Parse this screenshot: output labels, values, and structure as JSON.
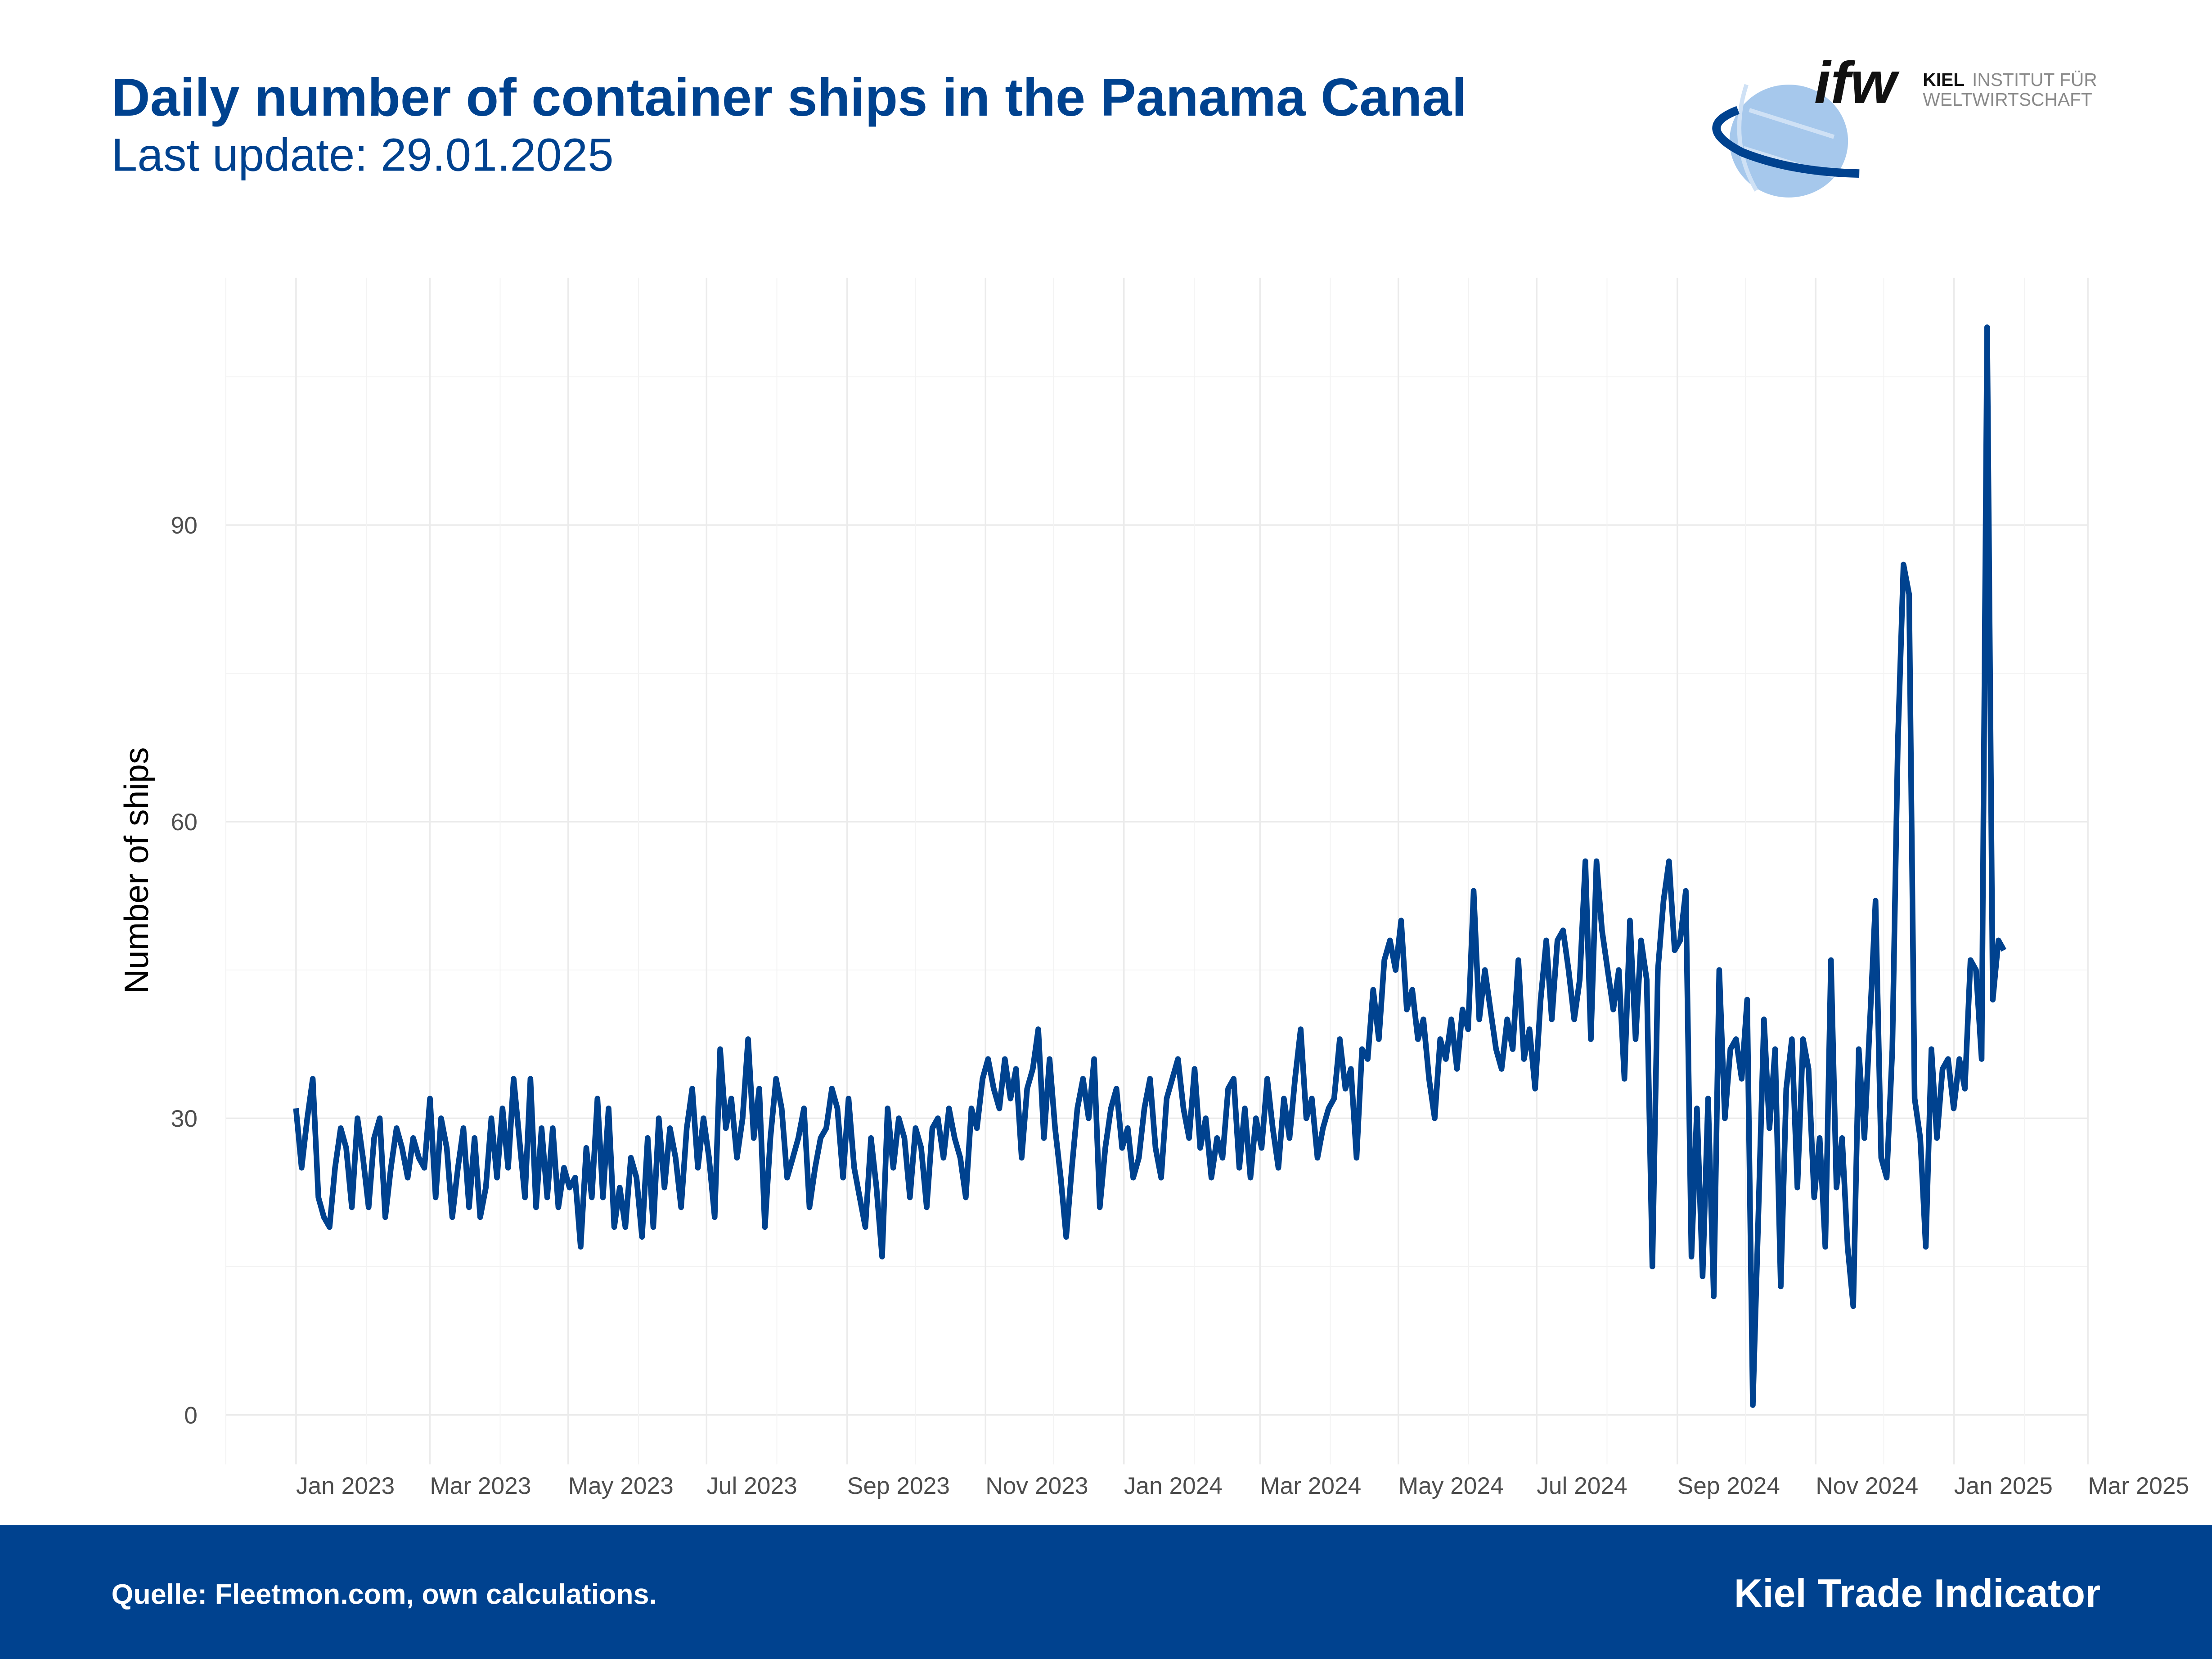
{
  "header": {
    "title": "Daily number of container ships in the Panama Canal",
    "subtitle": "Last update: 29.01.2025"
  },
  "logo": {
    "mark": "ifw",
    "line1_bold": "KIEL",
    "line1_rest": "INSTITUT FÜR",
    "line2": "WELTWIRTSCHAFT"
  },
  "footer": {
    "source": "Quelle: Fleetmon.com, own calculations.",
    "brand": "Kiel Trade Indicator",
    "background": "#00428f"
  },
  "chart_data": {
    "type": "line",
    "title": "Daily number of container ships in the Panama Canal",
    "xlabel": "",
    "ylabel": "Number of ships",
    "line_color": "#00428f",
    "grid": true,
    "legend": "none",
    "xlim": [
      "2022-12-01",
      "2025-03-01"
    ],
    "ylim": [
      -5,
      115
    ],
    "yticks": [
      0,
      30,
      60,
      90
    ],
    "ytick_labels": [
      "0",
      "30",
      "60",
      "90"
    ],
    "xticks": [
      "2023-01-01",
      "2023-03-01",
      "2023-05-01",
      "2023-07-01",
      "2023-09-01",
      "2023-11-01",
      "2024-01-01",
      "2024-03-01",
      "2024-05-01",
      "2024-07-01",
      "2024-09-01",
      "2024-11-01",
      "2025-01-01",
      "2025-03-01"
    ],
    "xtick_labels": [
      "Jan 2023",
      "Mar 2023",
      "May 2023",
      "Jul 2023",
      "Sep 2023",
      "Nov 2023",
      "Jan 2024",
      "Mar 2024",
      "May 2024",
      "Jul 2024",
      "Sep 2024",
      "Nov 2024",
      "Jan 2025",
      "Mar 2025"
    ],
    "series_date_range": [
      "2023-01-01",
      "2025-01-23"
    ],
    "values": [
      31,
      25,
      30,
      34,
      22,
      20,
      19,
      25,
      29,
      27,
      21,
      30,
      26,
      21,
      28,
      30,
      20,
      25,
      29,
      27,
      24,
      28,
      26,
      25,
      32,
      22,
      30,
      27,
      20,
      25,
      29,
      21,
      28,
      20,
      23,
      30,
      24,
      31,
      25,
      34,
      28,
      22,
      34,
      21,
      29,
      22,
      29,
      21,
      25,
      23,
      24,
      17,
      27,
      22,
      32,
      22,
      31,
      19,
      23,
      19,
      26,
      24,
      18,
      28,
      19,
      30,
      23,
      29,
      26,
      21,
      29,
      33,
      25,
      30,
      26,
      20,
      37,
      29,
      32,
      26,
      30,
      38,
      28,
      33,
      19,
      28,
      34,
      31,
      24,
      26,
      28,
      31,
      21,
      25,
      28,
      29,
      33,
      31,
      24,
      32,
      25,
      22,
      19,
      28,
      23,
      16,
      31,
      25,
      30,
      28,
      22,
      29,
      27,
      21,
      29,
      30,
      26,
      31,
      28,
      26,
      22,
      31,
      29,
      34,
      36,
      33,
      31,
      36,
      32,
      35,
      26,
      33,
      35,
      39,
      28,
      36,
      29,
      24,
      18,
      25,
      31,
      34,
      30,
      36,
      21,
      27,
      31,
      33,
      27,
      29,
      24,
      26,
      31,
      34,
      27,
      24,
      32,
      34,
      36,
      31,
      28,
      35,
      27,
      30,
      24,
      28,
      26,
      33,
      34,
      25,
      31,
      24,
      30,
      27,
      34,
      29,
      25,
      32,
      28,
      34,
      39,
      30,
      32,
      26,
      29,
      31,
      32,
      38,
      33,
      35,
      26,
      37,
      36,
      43,
      38,
      46,
      48,
      45,
      50,
      41,
      43,
      38,
      40,
      34,
      30,
      38,
      36,
      40,
      35,
      41,
      39,
      53,
      40,
      45,
      41,
      37,
      35,
      40,
      37,
      46,
      36,
      39,
      33,
      42,
      48,
      40,
      48,
      49,
      45,
      40,
      44,
      56,
      38,
      56,
      49,
      45,
      41,
      45,
      34,
      50,
      38,
      48,
      44,
      15,
      45,
      52,
      56,
      47,
      48,
      53,
      16,
      31,
      14,
      32,
      12,
      45,
      30,
      37,
      38,
      34,
      42,
      1,
      20,
      40,
      29,
      37,
      13,
      33,
      38,
      23,
      38,
      35,
      22,
      28,
      17,
      46,
      23,
      28,
      17,
      11,
      37,
      28,
      40,
      52,
      26,
      24,
      37,
      68,
      86,
      83,
      32,
      28,
      17,
      37,
      28,
      35,
      36,
      31,
      36,
      33,
      46,
      45,
      36,
      110,
      42,
      48,
      47
    ]
  }
}
